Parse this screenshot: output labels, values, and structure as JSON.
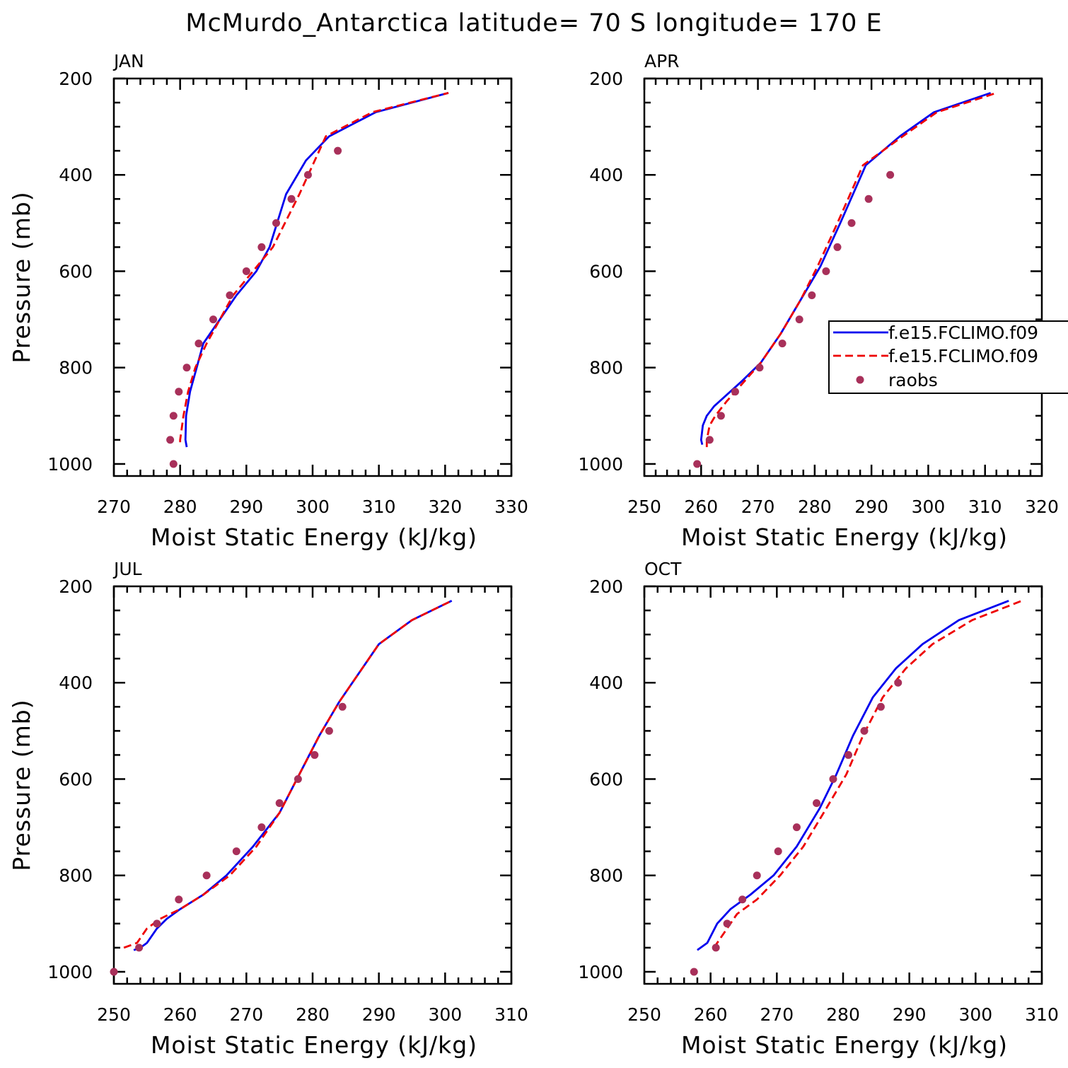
{
  "title": "McMurdo_Antarctica  latitude= 70 S longitude= 170 E",
  "colors": {
    "series1": "#0000ee",
    "series2": "#ee0000",
    "raobs": "#a8305a"
  },
  "legend": {
    "entries": [
      {
        "label": "f.e15.FCLIMO.f09",
        "style": "solid",
        "color": "#0000ee"
      },
      {
        "label": "f.e15.FCLIMO.f09",
        "style": "dashed",
        "color": "#ee0000"
      },
      {
        "label": "raobs",
        "style": "dot",
        "color": "#a8305a"
      }
    ],
    "placement": "right-middle of APR panel, clipped at image edge"
  },
  "chart_data": [
    {
      "type": "line",
      "panel": "JAN",
      "xlabel": "Moist Static Energy (kJ/kg)",
      "ylabel": "Pressure (mb)",
      "xlim": [
        270,
        330
      ],
      "ylim": [
        1025,
        200
      ],
      "xticks": [
        270,
        280,
        290,
        300,
        310,
        320,
        330
      ],
      "yticks": [
        200,
        400,
        600,
        800,
        1000
      ],
      "series": [
        {
          "name": "f.e15.FCLIMO.f09",
          "style": "solid",
          "x": [
            281.0,
            280.8,
            280.9,
            281.5,
            282.5,
            283.5,
            286.0,
            288.5,
            291.5,
            293.5,
            296.0,
            299.0,
            302.5,
            309.5,
            320.5
          ],
          "y": [
            965,
            950,
            900,
            850,
            800,
            750,
            700,
            650,
            600,
            550,
            440,
            370,
            320,
            270,
            230
          ]
        },
        {
          "name": "f.e15.FCLIMO.f09",
          "style": "dashed",
          "x": [
            280.0,
            280.0,
            280.5,
            281.2,
            282.3,
            284.0,
            286.0,
            288.0,
            291.0,
            294.0,
            298.0,
            302.0,
            309.0,
            320.5
          ],
          "y": [
            955,
            950,
            900,
            850,
            800,
            750,
            700,
            650,
            600,
            550,
            440,
            320,
            270,
            230
          ]
        },
        {
          "name": "raobs",
          "style": "dot",
          "x": [
            279.0,
            278.5,
            279.0,
            279.8,
            281.0,
            282.8,
            285.0,
            287.5,
            290.0,
            292.3,
            294.5,
            296.8,
            299.3,
            303.8
          ],
          "y": [
            1000,
            950,
            900,
            850,
            800,
            750,
            700,
            650,
            600,
            550,
            500,
            450,
            400,
            350
          ]
        }
      ]
    },
    {
      "type": "line",
      "panel": "APR",
      "xlabel": "Moist Static Energy (kJ/kg)",
      "ylabel": "",
      "xlim": [
        250,
        320
      ],
      "ylim": [
        1025,
        200
      ],
      "xticks": [
        250,
        260,
        270,
        280,
        290,
        300,
        310,
        320
      ],
      "yticks": [
        200,
        400,
        600,
        800,
        1000
      ],
      "series": [
        {
          "name": "f.e15.FCLIMO.f09",
          "style": "solid",
          "x": [
            260.2,
            260.0,
            260.3,
            261.0,
            262.3,
            267.0,
            270.5,
            274.0,
            278.0,
            281.0,
            284.5,
            289.0,
            295.0,
            301.0,
            311.0
          ],
          "y": [
            960,
            950,
            920,
            900,
            880,
            830,
            790,
            730,
            650,
            590,
            500,
            380,
            320,
            270,
            230
          ]
        },
        {
          "name": "f.e15.FCLIMO.f09",
          "style": "dashed",
          "x": [
            261.0,
            261.0,
            261.5,
            262.5,
            264.5,
            267.5,
            270.5,
            274.0,
            277.5,
            280.5,
            284.0,
            288.5,
            295.5,
            301.5,
            312.0
          ],
          "y": [
            965,
            950,
            920,
            900,
            870,
            830,
            790,
            730,
            660,
            590,
            500,
            380,
            320,
            270,
            230
          ]
        },
        {
          "name": "raobs",
          "style": "dot",
          "x": [
            259.3,
            261.5,
            263.5,
            266.0,
            270.3,
            274.3,
            277.3,
            279.5,
            282.0,
            284.0,
            286.5,
            289.5,
            293.3
          ],
          "y": [
            1000,
            950,
            900,
            850,
            800,
            750,
            700,
            650,
            600,
            550,
            500,
            450,
            400
          ]
        }
      ]
    },
    {
      "type": "line",
      "panel": "JUL",
      "xlabel": "Moist Static Energy (kJ/kg)",
      "ylabel": "Pressure (mb)",
      "xlim": [
        250,
        310
      ],
      "ylim": [
        1025,
        200
      ],
      "xticks": [
        250,
        260,
        270,
        280,
        290,
        300,
        310
      ],
      "yticks": [
        200,
        400,
        600,
        800,
        1000
      ],
      "series": [
        {
          "name": "f.e15.FCLIMO.f09",
          "style": "solid",
          "x": [
            253.0,
            254.0,
            255.0,
            256.5,
            258.0,
            260.0,
            263.5,
            267.0,
            271.0,
            275.0,
            278.0,
            281.0,
            284.0,
            287.0,
            290.0,
            295.0,
            301.0
          ],
          "y": [
            955,
            950,
            940,
            910,
            890,
            870,
            840,
            800,
            740,
            670,
            590,
            510,
            440,
            380,
            320,
            270,
            230
          ]
        },
        {
          "name": "f.e15.FCLIMO.f09",
          "style": "dashed",
          "x": [
            251.5,
            253.5,
            255.0,
            257.0,
            260.0,
            263.5,
            267.5,
            271.5,
            275.0,
            278.0,
            281.0,
            284.0,
            287.0,
            290.0,
            295.0,
            301.0
          ],
          "y": [
            950,
            940,
            910,
            890,
            870,
            840,
            800,
            740,
            670,
            590,
            510,
            440,
            380,
            320,
            270,
            230
          ]
        },
        {
          "name": "raobs",
          "style": "dot",
          "x": [
            250.0,
            253.8,
            256.5,
            259.8,
            264.0,
            268.5,
            272.3,
            275.0,
            277.8,
            280.3,
            282.5,
            284.5
          ],
          "y": [
            1000,
            950,
            900,
            850,
            800,
            750,
            700,
            650,
            600,
            550,
            500,
            450
          ]
        }
      ]
    },
    {
      "type": "line",
      "panel": "OCT",
      "xlabel": "Moist Static Energy (kJ/kg)",
      "ylabel": "",
      "xlim": [
        250,
        310
      ],
      "ylim": [
        1025,
        200
      ],
      "xticks": [
        250,
        260,
        270,
        280,
        290,
        300,
        310
      ],
      "yticks": [
        200,
        400,
        600,
        800,
        1000
      ],
      "series": [
        {
          "name": "f.e15.FCLIMO.f09",
          "style": "solid",
          "x": [
            258.0,
            259.5,
            261.0,
            263.0,
            266.0,
            269.5,
            273.0,
            276.5,
            279.0,
            281.5,
            284.5,
            288.0,
            292.0,
            297.5,
            305.0
          ],
          "y": [
            955,
            940,
            900,
            870,
            840,
            800,
            740,
            660,
            590,
            510,
            430,
            370,
            320,
            270,
            230
          ]
        },
        {
          "name": "f.e15.FCLIMO.f09",
          "style": "dashed",
          "x": [
            260.5,
            262.0,
            264.0,
            267.0,
            270.5,
            274.0,
            277.5,
            280.5,
            283.0,
            286.0,
            289.5,
            293.5,
            299.5,
            307.0
          ],
          "y": [
            950,
            920,
            880,
            850,
            800,
            740,
            660,
            590,
            510,
            430,
            370,
            320,
            270,
            230
          ]
        },
        {
          "name": "raobs",
          "style": "dot",
          "x": [
            257.5,
            260.8,
            262.5,
            264.8,
            267.0,
            270.2,
            273.0,
            276.0,
            278.5,
            280.8,
            283.2,
            285.7,
            288.3
          ],
          "y": [
            1000,
            950,
            900,
            850,
            800,
            750,
            700,
            650,
            600,
            550,
            500,
            450,
            400
          ]
        }
      ]
    }
  ]
}
